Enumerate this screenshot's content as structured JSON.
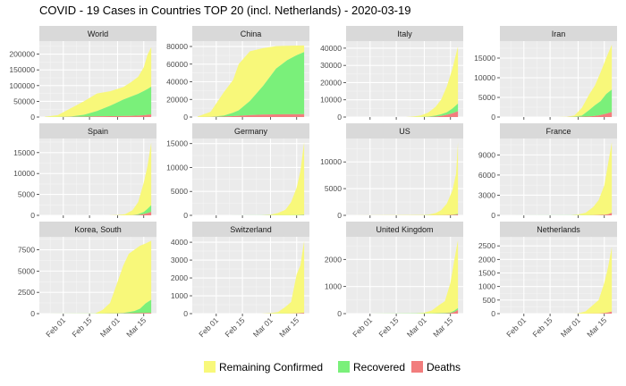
{
  "chart_data": {
    "type": "area",
    "title": "COVID - 19 Cases in Countries TOP 20 (incl. Netherlands) - 2020-03-19",
    "x_tick_labels": [
      "Feb 01",
      "Feb 15",
      "Mar 01",
      "Mar 15"
    ],
    "x_tick_dates": [
      "2020-02-01",
      "2020-02-15",
      "2020-03-01",
      "2020-03-15"
    ],
    "x_range": [
      "2020-01-22",
      "2020-03-19"
    ],
    "grid": true,
    "legend_position": "bottom",
    "legend": [
      {
        "key": "remaining",
        "label": "Remaining Confirmed",
        "color": "#f8f87a"
      },
      {
        "key": "recovered",
        "label": "Recovered",
        "color": "#7af07a"
      },
      {
        "key": "deaths",
        "label": "Deaths",
        "color": "#f27d7d"
      }
    ],
    "colors": {
      "panel_bg": "#ebebeb",
      "strip_bg": "#d9d9d9",
      "grid_major": "#ffffff",
      "remaining": "#f8f87a",
      "recovered": "#7af07a",
      "deaths": "#f27d7d"
    },
    "panels": [
      {
        "name": "World",
        "ylim": [
          0,
          230000
        ],
        "yticks": [
          0,
          50000,
          100000,
          150000,
          200000,
          250000
        ],
        "show_x": false,
        "series": {
          "dates": [
            "2020-01-22",
            "2020-01-29",
            "2020-02-05",
            "2020-02-12",
            "2020-02-19",
            "2020-02-26",
            "2020-03-04",
            "2020-03-08",
            "2020-03-12",
            "2020-03-15",
            "2020-03-17",
            "2020-03-19"
          ],
          "confirmed": [
            600,
            6000,
            28000,
            50000,
            75000,
            82000,
            95000,
            110000,
            128000,
            158000,
            198000,
            222000
          ],
          "recovered": [
            0,
            150,
            1200,
            6000,
            17000,
            33000,
            52000,
            61000,
            69000,
            77000,
            82000,
            88000
          ],
          "deaths": [
            17,
            130,
            570,
            1120,
            2130,
            2770,
            3250,
            3590,
            4720,
            5830,
            7000,
            8500
          ]
        }
      },
      {
        "name": "China",
        "ylim": [
          0,
          82000
        ],
        "yticks": [
          0,
          20000,
          40000,
          60000,
          80000
        ],
        "show_x": false,
        "series": {
          "dates": [
            "2020-01-22",
            "2020-01-29",
            "2020-02-05",
            "2020-02-10",
            "2020-02-13",
            "2020-02-19",
            "2020-02-26",
            "2020-03-04",
            "2020-03-10",
            "2020-03-15",
            "2020-03-19"
          ],
          "confirmed": [
            550,
            6000,
            28000,
            42000,
            60000,
            74600,
            78100,
            80400,
            80800,
            81000,
            81200
          ],
          "recovered": [
            0,
            120,
            1100,
            3900,
            6200,
            16100,
            32500,
            52000,
            61500,
            67000,
            70500
          ],
          "deaths": [
            17,
            130,
            560,
            1010,
            1370,
            2120,
            2720,
            2980,
            3130,
            3200,
            3250
          ]
        }
      },
      {
        "name": "Italy",
        "ylim": [
          0,
          42000
        ],
        "yticks": [
          0,
          10000,
          20000,
          30000,
          40000
        ],
        "show_x": false,
        "series": {
          "dates": [
            "2020-01-22",
            "2020-02-20",
            "2020-02-24",
            "2020-02-28",
            "2020-03-03",
            "2020-03-07",
            "2020-03-10",
            "2020-03-13",
            "2020-03-16",
            "2020-03-19"
          ],
          "confirmed": [
            0,
            3,
            230,
            890,
            2500,
            5880,
            10150,
            17660,
            27980,
            41000
          ],
          "recovered": [
            0,
            0,
            1,
            46,
            160,
            590,
            1000,
            1440,
            2750,
            4440
          ],
          "deaths": [
            0,
            0,
            7,
            21,
            80,
            230,
            630,
            1270,
            2160,
            3400
          ]
        }
      },
      {
        "name": "Iran",
        "ylim": [
          0,
          18400
        ],
        "yticks": [
          0,
          5000,
          10000,
          15000
        ],
        "show_x": false,
        "series": {
          "dates": [
            "2020-01-22",
            "2020-02-19",
            "2020-02-24",
            "2020-02-28",
            "2020-03-03",
            "2020-03-07",
            "2020-03-10",
            "2020-03-13",
            "2020-03-16",
            "2020-03-19"
          ],
          "confirmed": [
            0,
            2,
            61,
            388,
            2340,
            5820,
            8040,
            11360,
            14990,
            18400
          ],
          "recovered": [
            0,
            0,
            0,
            73,
            290,
            1670,
            2730,
            3530,
            4990,
            5710
          ],
          "deaths": [
            0,
            0,
            12,
            34,
            77,
            145,
            291,
            514,
            853,
            1280
          ]
        }
      },
      {
        "name": "Spain",
        "ylim": [
          0,
          17500
        ],
        "yticks": [
          0,
          5000,
          10000,
          15000
        ],
        "show_x": false,
        "series": {
          "dates": [
            "2020-01-22",
            "2020-02-25",
            "2020-03-01",
            "2020-03-05",
            "2020-03-09",
            "2020-03-12",
            "2020-03-15",
            "2020-03-17",
            "2020-03-19"
          ],
          "confirmed": [
            0,
            6,
            84,
            261,
            1231,
            3146,
            7798,
            11748,
            17400
          ],
          "recovered": [
            0,
            0,
            2,
            2,
            32,
            189,
            517,
            1028,
            1600
          ],
          "deaths": [
            0,
            0,
            0,
            3,
            30,
            86,
            289,
            533,
            830
          ]
        }
      },
      {
        "name": "Germany",
        "ylim": [
          0,
          15300
        ],
        "yticks": [
          0,
          5000,
          10000,
          15000
        ],
        "show_x": false,
        "series": {
          "dates": [
            "2020-01-22",
            "2020-01-28",
            "2020-02-25",
            "2020-03-01",
            "2020-03-05",
            "2020-03-09",
            "2020-03-12",
            "2020-03-15",
            "2020-03-17",
            "2020-03-19"
          ],
          "confirmed": [
            0,
            4,
            17,
            130,
            482,
            1176,
            2745,
            5795,
            9257,
            15300
          ],
          "recovered": [
            0,
            0,
            14,
            16,
            16,
            18,
            25,
            46,
            67,
            113
          ],
          "deaths": [
            0,
            0,
            0,
            0,
            0,
            2,
            6,
            11,
            24,
            44
          ]
        }
      },
      {
        "name": "US",
        "ylim": [
          0,
          13700
        ],
        "yticks": [
          0,
          5000,
          10000
        ],
        "show_x": false,
        "series": {
          "dates": [
            "2020-01-22",
            "2020-02-28",
            "2020-03-03",
            "2020-03-07",
            "2020-03-10",
            "2020-03-13",
            "2020-03-16",
            "2020-03-18",
            "2020-03-19"
          ],
          "confirmed": [
            1,
            62,
            118,
            417,
            959,
            2179,
            4632,
            7786,
            13700
          ],
          "recovered": [
            0,
            7,
            7,
            8,
            8,
            12,
            17,
            106,
            108
          ],
          "deaths": [
            0,
            0,
            7,
            17,
            28,
            47,
            85,
            118,
            200
          ]
        }
      },
      {
        "name": "France",
        "ylim": [
          0,
          10900
        ],
        "yticks": [
          0,
          3000,
          6000,
          9000
        ],
        "show_x": false,
        "series": {
          "dates": [
            "2020-01-22",
            "2020-01-24",
            "2020-02-26",
            "2020-03-01",
            "2020-03-05",
            "2020-03-09",
            "2020-03-12",
            "2020-03-15",
            "2020-03-17",
            "2020-03-19"
          ],
          "confirmed": [
            0,
            2,
            18,
            130,
            377,
            1209,
            2284,
            4480,
            7652,
            10900
          ],
          "recovered": [
            0,
            0,
            12,
            12,
            12,
            12,
            12,
            12,
            12,
            12
          ],
          "deaths": [
            0,
            0,
            2,
            2,
            6,
            19,
            48,
            91,
            148,
            372
          ]
        }
      },
      {
        "name": "Korea, South",
        "ylim": [
          0,
          8600
        ],
        "yticks": [
          0,
          2500,
          5000,
          7500
        ],
        "show_x": true,
        "series": {
          "dates": [
            "2020-01-22",
            "2020-02-18",
            "2020-02-22",
            "2020-02-26",
            "2020-03-01",
            "2020-03-04",
            "2020-03-07",
            "2020-03-10",
            "2020-03-13",
            "2020-03-16",
            "2020-03-19"
          ],
          "confirmed": [
            1,
            31,
            433,
            1261,
            3736,
            5621,
            7041,
            7513,
            7979,
            8236,
            8565
          ],
          "recovered": [
            0,
            12,
            16,
            22,
            30,
            41,
            135,
            247,
            510,
            1137,
            1540
          ],
          "deaths": [
            0,
            0,
            2,
            12,
            17,
            32,
            44,
            54,
            67,
            75,
            91
          ]
        }
      },
      {
        "name": "Switzerland",
        "ylim": [
          0,
          4100
        ],
        "yticks": [
          0,
          1000,
          2000,
          3000,
          4000
        ],
        "show_x": true,
        "series": {
          "dates": [
            "2020-01-22",
            "2020-02-25",
            "2020-03-01",
            "2020-03-05",
            "2020-03-09",
            "2020-03-12",
            "2020-03-15",
            "2020-03-17",
            "2020-03-19"
          ],
          "confirmed": [
            0,
            1,
            27,
            90,
            374,
            652,
            2200,
            2700,
            4075
          ],
          "recovered": [
            0,
            0,
            0,
            3,
            3,
            4,
            4,
            4,
            15
          ],
          "deaths": [
            0,
            0,
            0,
            1,
            2,
            4,
            14,
            27,
            41
          ]
        }
      },
      {
        "name": "United Kingdom",
        "ylim": [
          0,
          2700
        ],
        "yticks": [
          0,
          1000,
          2000
        ],
        "show_x": true,
        "series": {
          "dates": [
            "2020-01-22",
            "2020-01-31",
            "2020-02-25",
            "2020-03-01",
            "2020-03-05",
            "2020-03-09",
            "2020-03-12",
            "2020-03-15",
            "2020-03-17",
            "2020-03-19"
          ],
          "confirmed": [
            0,
            2,
            13,
            36,
            116,
            321,
            459,
            1144,
            1960,
            2716
          ],
          "recovered": [
            0,
            0,
            8,
            8,
            8,
            18,
            19,
            21,
            53,
            67
          ],
          "deaths": [
            0,
            0,
            0,
            0,
            1,
            4,
            8,
            21,
            56,
            138
          ]
        }
      },
      {
        "name": "Netherlands",
        "ylim": [
          0,
          2700
        ],
        "yticks": [
          0,
          500,
          1000,
          1500,
          2000,
          2500
        ],
        "show_x": true,
        "series": {
          "dates": [
            "2020-01-22",
            "2020-02-27",
            "2020-03-01",
            "2020-03-05",
            "2020-03-09",
            "2020-03-12",
            "2020-03-15",
            "2020-03-17",
            "2020-03-19"
          ],
          "confirmed": [
            0,
            1,
            10,
            82,
            321,
            503,
            1138,
            1708,
            2460
          ],
          "recovered": [
            0,
            0,
            0,
            0,
            0,
            0,
            0,
            2,
            2
          ],
          "deaths": [
            0,
            0,
            0,
            0,
            3,
            5,
            20,
            43,
            76
          ]
        }
      }
    ]
  }
}
